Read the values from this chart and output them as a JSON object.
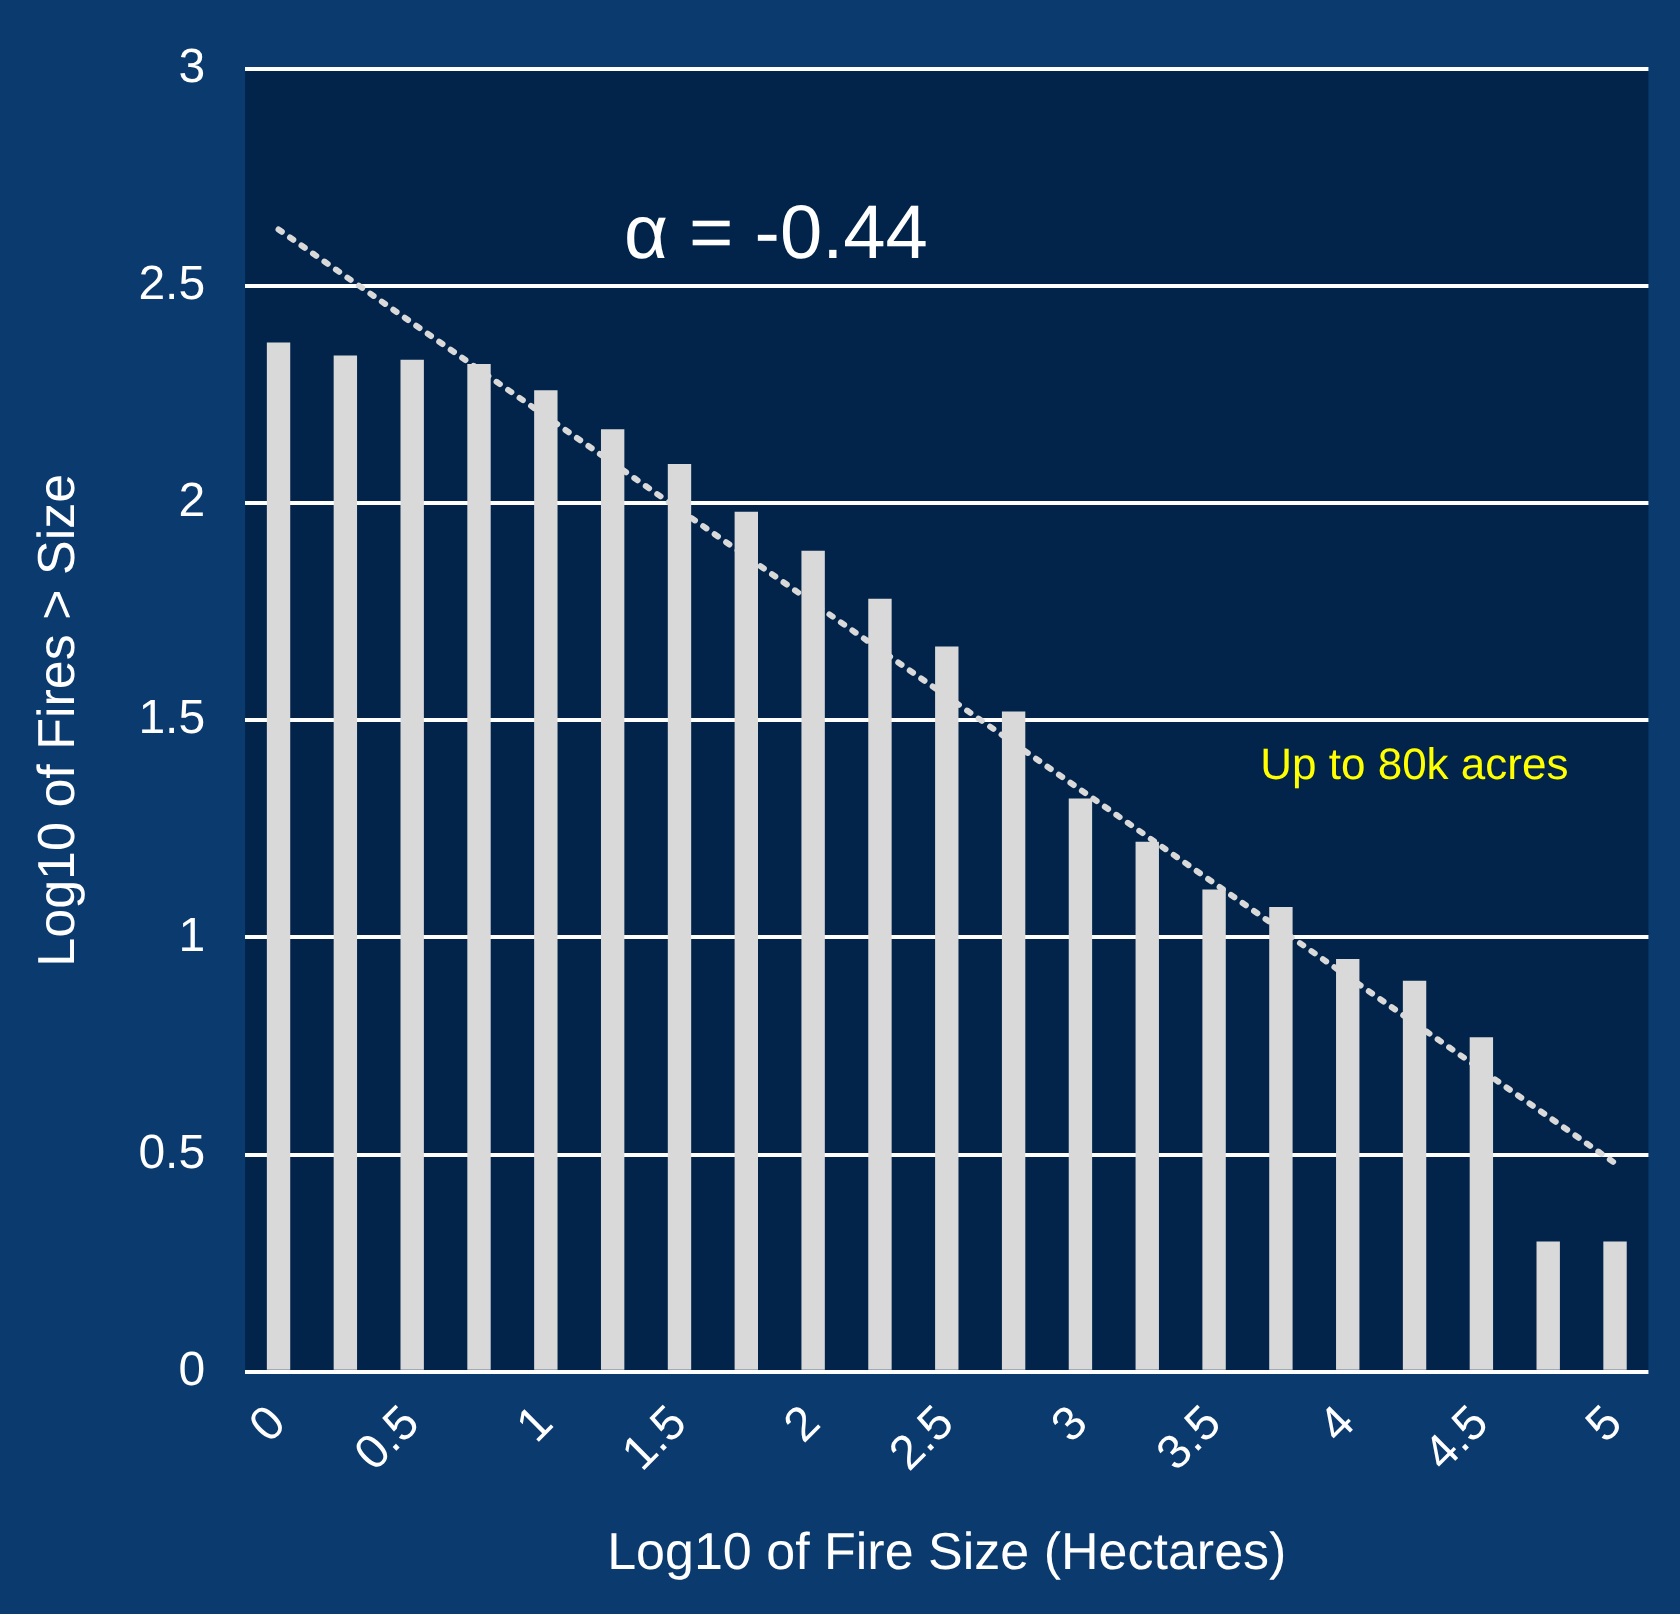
{
  "chart_data": {
    "type": "bar",
    "xlabel": "Log10 of Fire Size (Hectares)",
    "ylabel": "Log10 of Fires > Size",
    "categories": [
      "0",
      null,
      "0.5",
      null,
      "1",
      null,
      "1.5",
      null,
      "2",
      null,
      "2.5",
      null,
      "3",
      null,
      "3.5",
      null,
      "4",
      null,
      "4.5",
      null,
      "5"
    ],
    "series": [
      {
        "color": "#d9d9d9",
        "values": [
          2.37,
          2.34,
          2.33,
          2.32,
          2.26,
          2.17,
          2.09,
          1.98,
          1.89,
          1.78,
          1.67,
          1.52,
          1.32,
          1.22,
          1.11,
          1.07,
          0.95,
          0.9,
          0.77,
          0.3,
          0.3
        ]
      },
      {
        "type": "line",
        "color": "#d9d9d9",
        "line_style": "dotted",
        "values": [
          2.63,
          null,
          null,
          null,
          null,
          null,
          null,
          null,
          null,
          null,
          null,
          null,
          null,
          null,
          null,
          null,
          null,
          null,
          null,
          null,
          0.48
        ]
      }
    ],
    "ylim": [
      0,
      3
    ],
    "yticks": [
      0,
      0.5,
      1,
      1.5,
      2,
      2.5,
      3
    ],
    "grid": "y",
    "legend": false,
    "annotations": [
      "α = -0.44",
      "Up to 80k acres"
    ]
  }
}
